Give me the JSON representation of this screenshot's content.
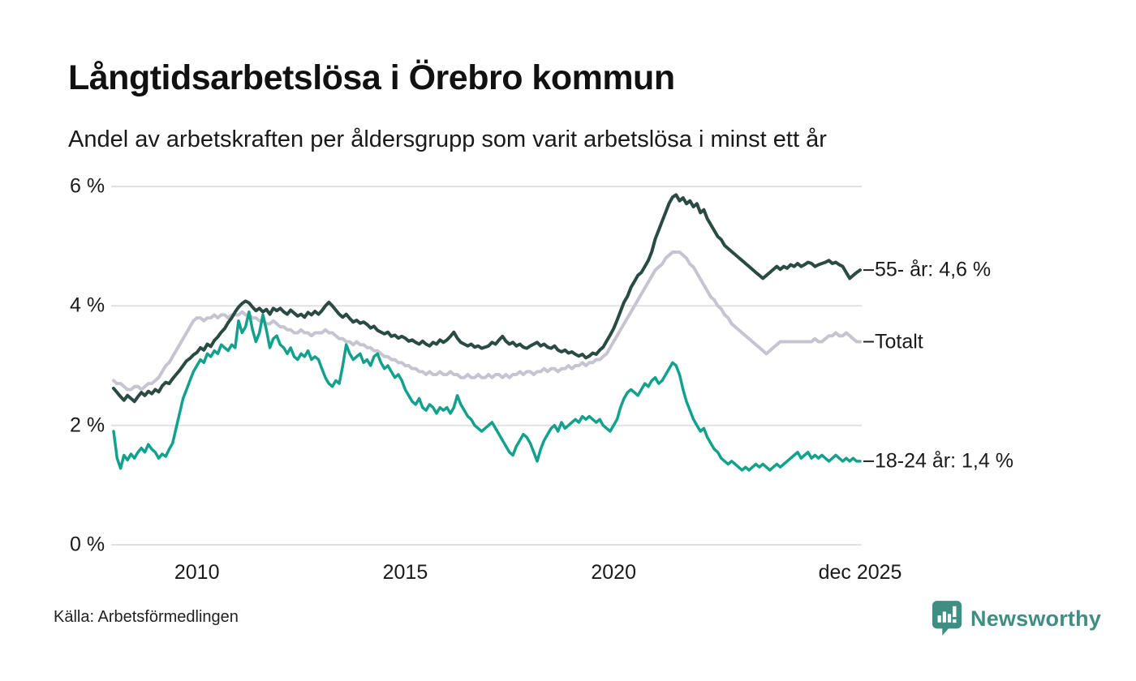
{
  "header": {
    "title": "Långtidsarbetslösa i Örebro kommun",
    "subtitle": "Andel av arbetskraften per åldersgrupp som varit arbetslösa i minst ett år"
  },
  "footer": {
    "source": "Källa: Arbetsförmedlingen",
    "brand": "Newsworthy",
    "brand_color": "#3e8e84",
    "logo_icon": "speech-bubble-bar-chart-exclamation"
  },
  "colors": {
    "grid": "#e1e1e1",
    "text": "#1a1a1a",
    "connector_dash": "#222222"
  },
  "chart_data": {
    "type": "line",
    "title": "Långtidsarbetslösa i Örebro kommun",
    "subtitle": "Andel av arbetskraften per åldersgrupp som varit arbetslösa i minst ett år",
    "unit": "%",
    "x_description": "Månadsvärden januari 2008 – december 2025",
    "x_start": "2008-01",
    "x_end": "2025-12",
    "points_per_series": 216,
    "ylim": [
      0,
      6
    ],
    "grid": "horizontal-only",
    "legend_position": "end-of-line-labels",
    "y_ticks": [
      {
        "label": "6 %",
        "value": 6
      },
      {
        "label": "4 %",
        "value": 4
      },
      {
        "label": "2 %",
        "value": 2
      },
      {
        "label": "0 %",
        "value": 0
      }
    ],
    "x_ticks": [
      {
        "label": "2010",
        "month_index": 24
      },
      {
        "label": "2015",
        "month_index": 84
      },
      {
        "label": "2020",
        "month_index": 144
      },
      {
        "label": "dec 2025",
        "month_index": 215
      }
    ],
    "series": [
      {
        "name": "Totalt",
        "end_label": "Totalt",
        "last_value": 3.4,
        "color": "#c6c4d0",
        "stroke_width": 4,
        "values": [
          2.75,
          2.7,
          2.7,
          2.65,
          2.6,
          2.6,
          2.65,
          2.65,
          2.6,
          2.65,
          2.7,
          2.7,
          2.75,
          2.8,
          2.9,
          3.0,
          3.05,
          3.15,
          3.25,
          3.35,
          3.45,
          3.55,
          3.65,
          3.75,
          3.8,
          3.8,
          3.75,
          3.8,
          3.8,
          3.85,
          3.8,
          3.85,
          3.85,
          3.8,
          3.85,
          3.85,
          3.85,
          3.9,
          3.85,
          3.85,
          3.8,
          3.8,
          3.75,
          3.75,
          3.7,
          3.7,
          3.75,
          3.7,
          3.65,
          3.65,
          3.6,
          3.6,
          3.55,
          3.55,
          3.6,
          3.55,
          3.55,
          3.5,
          3.55,
          3.55,
          3.55,
          3.6,
          3.55,
          3.55,
          3.5,
          3.45,
          3.45,
          3.4,
          3.4,
          3.35,
          3.4,
          3.35,
          3.35,
          3.3,
          3.3,
          3.25,
          3.25,
          3.2,
          3.15,
          3.15,
          3.1,
          3.1,
          3.05,
          3.05,
          3.0,
          3.0,
          2.95,
          2.95,
          2.9,
          2.9,
          2.85,
          2.9,
          2.85,
          2.85,
          2.9,
          2.85,
          2.85,
          2.9,
          2.85,
          2.85,
          2.8,
          2.8,
          2.85,
          2.8,
          2.8,
          2.85,
          2.8,
          2.8,
          2.85,
          2.8,
          2.85,
          2.85,
          2.8,
          2.85,
          2.8,
          2.85,
          2.85,
          2.9,
          2.85,
          2.9,
          2.9,
          2.85,
          2.9,
          2.9,
          2.95,
          2.9,
          2.95,
          2.95,
          2.9,
          2.95,
          2.95,
          3.0,
          2.95,
          3.0,
          3.0,
          3.05,
          3.0,
          3.05,
          3.05,
          3.1,
          3.1,
          3.15,
          3.2,
          3.3,
          3.4,
          3.5,
          3.6,
          3.7,
          3.8,
          3.9,
          4.0,
          4.1,
          4.2,
          4.3,
          4.4,
          4.5,
          4.6,
          4.65,
          4.7,
          4.8,
          4.85,
          4.9,
          4.9,
          4.9,
          4.85,
          4.8,
          4.7,
          4.65,
          4.55,
          4.45,
          4.35,
          4.25,
          4.15,
          4.1,
          4.0,
          3.95,
          3.85,
          3.8,
          3.7,
          3.65,
          3.6,
          3.55,
          3.5,
          3.45,
          3.4,
          3.35,
          3.3,
          3.25,
          3.2,
          3.25,
          3.3,
          3.35,
          3.4,
          3.4,
          3.4,
          3.4,
          3.4,
          3.4,
          3.4,
          3.4,
          3.4,
          3.4,
          3.45,
          3.4,
          3.4,
          3.45,
          3.5,
          3.5,
          3.55,
          3.5,
          3.5,
          3.55,
          3.5,
          3.45,
          3.4,
          3.4
        ]
      },
      {
        "name": "55- år",
        "end_label": "55- år: 4,6 %",
        "last_value": 4.6,
        "color": "#2a4b43",
        "stroke_width": 4,
        "values": [
          2.62,
          2.55,
          2.48,
          2.42,
          2.5,
          2.45,
          2.4,
          2.48,
          2.55,
          2.5,
          2.57,
          2.53,
          2.6,
          2.56,
          2.66,
          2.72,
          2.7,
          2.78,
          2.85,
          2.92,
          3.0,
          3.08,
          3.12,
          3.18,
          3.22,
          3.3,
          3.26,
          3.36,
          3.32,
          3.42,
          3.48,
          3.56,
          3.62,
          3.72,
          3.8,
          3.9,
          3.98,
          4.04,
          4.08,
          4.05,
          3.98,
          3.92,
          3.96,
          3.9,
          3.94,
          3.86,
          3.96,
          3.92,
          3.96,
          3.9,
          3.86,
          3.93,
          3.88,
          3.83,
          3.86,
          3.81,
          3.89,
          3.85,
          3.91,
          3.86,
          3.92,
          4.0,
          4.06,
          4.0,
          3.93,
          3.86,
          3.81,
          3.86,
          3.79,
          3.73,
          3.76,
          3.71,
          3.73,
          3.69,
          3.63,
          3.66,
          3.59,
          3.56,
          3.53,
          3.56,
          3.49,
          3.51,
          3.46,
          3.49,
          3.46,
          3.41,
          3.43,
          3.39,
          3.36,
          3.41,
          3.36,
          3.33,
          3.39,
          3.36,
          3.43,
          3.39,
          3.43,
          3.49,
          3.56,
          3.46,
          3.39,
          3.36,
          3.33,
          3.36,
          3.31,
          3.33,
          3.29,
          3.31,
          3.33,
          3.39,
          3.36,
          3.43,
          3.49,
          3.41,
          3.36,
          3.39,
          3.33,
          3.36,
          3.31,
          3.29,
          3.33,
          3.36,
          3.39,
          3.33,
          3.36,
          3.31,
          3.29,
          3.33,
          3.26,
          3.23,
          3.26,
          3.21,
          3.23,
          3.19,
          3.16,
          3.19,
          3.13,
          3.16,
          3.21,
          3.19,
          3.26,
          3.31,
          3.41,
          3.51,
          3.62,
          3.76,
          3.91,
          4.06,
          4.16,
          4.31,
          4.41,
          4.51,
          4.56,
          4.66,
          4.76,
          4.91,
          5.12,
          5.27,
          5.42,
          5.57,
          5.72,
          5.82,
          5.86,
          5.76,
          5.81,
          5.71,
          5.76,
          5.66,
          5.71,
          5.56,
          5.61,
          5.46,
          5.36,
          5.26,
          5.16,
          5.11,
          5.01,
          4.96,
          4.91,
          4.86,
          4.81,
          4.76,
          4.71,
          4.66,
          4.61,
          4.56,
          4.51,
          4.46,
          4.51,
          4.56,
          4.61,
          4.66,
          4.61,
          4.66,
          4.63,
          4.69,
          4.66,
          4.71,
          4.66,
          4.69,
          4.73,
          4.71,
          4.66,
          4.69,
          4.71,
          4.73,
          4.76,
          4.71,
          4.73,
          4.69,
          4.66,
          4.56,
          4.46,
          4.51,
          4.56,
          4.6
        ]
      },
      {
        "name": "18-24 år",
        "end_label": "18-24 år: 1,4 %",
        "last_value": 1.4,
        "color": "#12a18c",
        "stroke_width": 3.5,
        "values": [
          1.9,
          1.45,
          1.28,
          1.5,
          1.42,
          1.52,
          1.45,
          1.55,
          1.62,
          1.55,
          1.68,
          1.6,
          1.55,
          1.45,
          1.52,
          1.48,
          1.6,
          1.7,
          1.95,
          2.2,
          2.45,
          2.6,
          2.75,
          2.9,
          3.0,
          3.1,
          3.05,
          3.2,
          3.15,
          3.25,
          3.2,
          3.35,
          3.3,
          3.25,
          3.35,
          3.3,
          3.75,
          3.55,
          3.65,
          3.9,
          3.6,
          3.4,
          3.55,
          3.85,
          3.6,
          3.3,
          3.45,
          3.5,
          3.35,
          3.3,
          3.2,
          3.3,
          3.15,
          3.1,
          3.2,
          3.15,
          3.25,
          3.1,
          3.15,
          3.1,
          2.95,
          2.8,
          2.7,
          2.65,
          2.75,
          2.7,
          3.0,
          3.35,
          3.2,
          3.1,
          3.15,
          3.2,
          3.05,
          3.1,
          3.0,
          3.15,
          3.2,
          3.05,
          2.95,
          3.0,
          2.9,
          2.8,
          2.85,
          2.75,
          2.6,
          2.5,
          2.4,
          2.35,
          2.45,
          2.3,
          2.25,
          2.35,
          2.3,
          2.2,
          2.3,
          2.25,
          2.3,
          2.2,
          2.3,
          2.5,
          2.35,
          2.25,
          2.15,
          2.1,
          2.0,
          1.95,
          1.9,
          1.95,
          2.0,
          2.05,
          1.95,
          1.85,
          1.75,
          1.65,
          1.55,
          1.5,
          1.65,
          1.75,
          1.85,
          1.8,
          1.7,
          1.55,
          1.4,
          1.6,
          1.75,
          1.85,
          1.95,
          2.0,
          1.9,
          2.05,
          1.95,
          2.0,
          2.05,
          2.1,
          2.05,
          2.15,
          2.1,
          2.15,
          2.1,
          2.05,
          2.1,
          2.0,
          1.95,
          1.9,
          2.0,
          2.1,
          2.3,
          2.45,
          2.55,
          2.6,
          2.55,
          2.5,
          2.6,
          2.7,
          2.65,
          2.75,
          2.8,
          2.7,
          2.75,
          2.85,
          2.95,
          3.05,
          3.0,
          2.85,
          2.6,
          2.4,
          2.25,
          2.1,
          2.0,
          1.9,
          1.95,
          1.8,
          1.7,
          1.6,
          1.55,
          1.45,
          1.4,
          1.35,
          1.4,
          1.35,
          1.3,
          1.25,
          1.3,
          1.25,
          1.3,
          1.35,
          1.3,
          1.35,
          1.3,
          1.25,
          1.3,
          1.35,
          1.3,
          1.35,
          1.4,
          1.45,
          1.5,
          1.55,
          1.45,
          1.5,
          1.55,
          1.45,
          1.5,
          1.45,
          1.5,
          1.45,
          1.4,
          1.45,
          1.5,
          1.45,
          1.4,
          1.45,
          1.4,
          1.45,
          1.4,
          1.4
        ]
      }
    ]
  }
}
